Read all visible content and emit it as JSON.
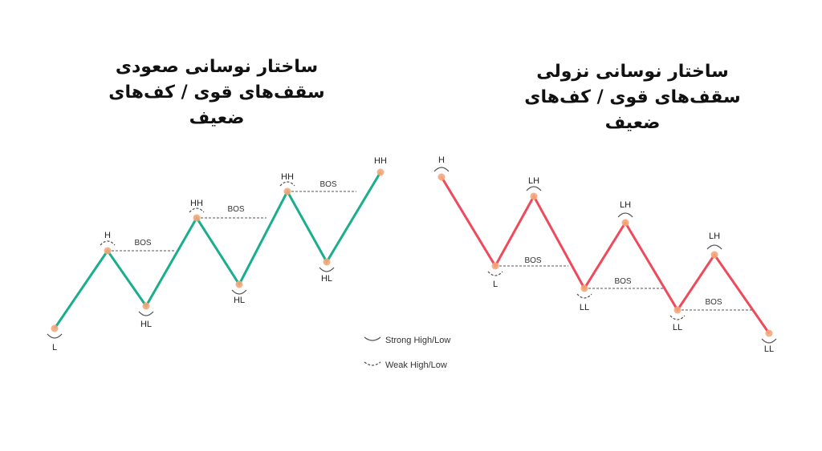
{
  "titles": {
    "left": {
      "line1": "ساختار نوسانی صعودی",
      "line2": "سقف‌های قوی / کف‌های ضعیف"
    },
    "right": {
      "line1": "ساختار نوسانی نزولی",
      "line2": "سقف‌های قوی / کف‌های ضعیف"
    }
  },
  "colors": {
    "bullish": "#1aae8c",
    "bearish": "#ee4a5c",
    "point": "#f4a77a",
    "arc": "#555555",
    "bos_line": "#777777"
  },
  "bullish": {
    "points": [
      "L",
      "H",
      "HL",
      "HH",
      "HL",
      "HH",
      "HL",
      "HH"
    ],
    "markers": [
      {
        "label": "L",
        "type": "strong"
      },
      {
        "label": "H",
        "type": "weak"
      },
      {
        "label": "HL",
        "type": "strong"
      },
      {
        "label": "HH",
        "type": "weak"
      },
      {
        "label": "HL",
        "type": "strong"
      },
      {
        "label": "HH",
        "type": "weak"
      },
      {
        "label": "HL",
        "type": "strong"
      },
      {
        "label": "HH",
        "type": "none"
      }
    ],
    "bos": [
      "BOS",
      "BOS",
      "BOS"
    ]
  },
  "bearish": {
    "markers": [
      {
        "label": "H",
        "type": "strong"
      },
      {
        "label": "L",
        "type": "weak"
      },
      {
        "label": "LH",
        "type": "strong"
      },
      {
        "label": "LL",
        "type": "weak"
      },
      {
        "label": "LH",
        "type": "strong"
      },
      {
        "label": "LL",
        "type": "weak"
      },
      {
        "label": "LH",
        "type": "strong"
      },
      {
        "label": "LL",
        "type": "strong"
      }
    ],
    "bos": [
      "BOS",
      "BOS",
      "BOS"
    ]
  },
  "legend": {
    "strong": "Strong High/Low",
    "weak": "Weak High/Low"
  }
}
